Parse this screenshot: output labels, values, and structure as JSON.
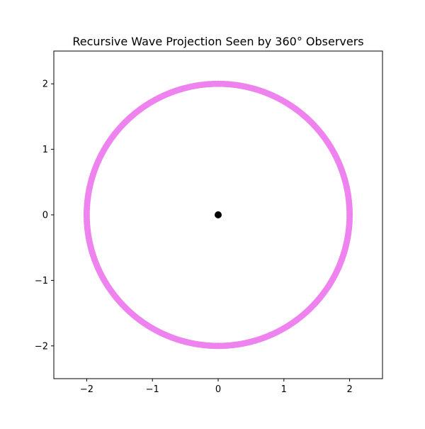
{
  "chart_data": {
    "type": "scatter",
    "title": "Recursive Wave Projection Seen by 360° Observers",
    "xlabel": "",
    "ylabel": "",
    "xlim": [
      -2.5,
      2.5
    ],
    "ylim": [
      -2.5,
      2.5
    ],
    "grid": false,
    "legend": "none",
    "xticks": [
      {
        "value": -2,
        "label": "−2"
      },
      {
        "value": -1,
        "label": "−1"
      },
      {
        "value": 0,
        "label": "0"
      },
      {
        "value": 1,
        "label": "1"
      },
      {
        "value": 2,
        "label": "2"
      }
    ],
    "yticks": [
      {
        "value": -2,
        "label": "−2"
      },
      {
        "value": -1,
        "label": "−1"
      },
      {
        "value": 0,
        "label": "0"
      },
      {
        "value": 1,
        "label": "1"
      },
      {
        "value": 2,
        "label": "2"
      }
    ],
    "series": [
      {
        "color": "#ee82ee",
        "shape": "ring",
        "center": [
          0,
          0
        ],
        "radius": 2.0,
        "point_count": 360
      },
      {
        "color": "#000000",
        "x": [
          0
        ],
        "y": [
          0
        ]
      }
    ]
  }
}
